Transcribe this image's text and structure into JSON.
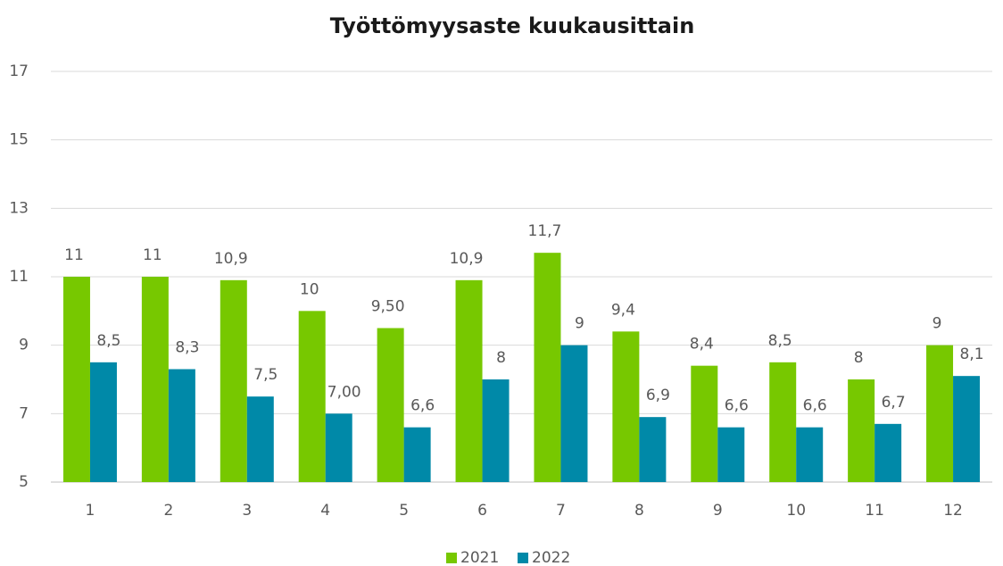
{
  "chart_data": {
    "type": "bar",
    "title": "Työttömyysaste kuukausittain",
    "categories": [
      "1",
      "2",
      "3",
      "4",
      "5",
      "6",
      "7",
      "8",
      "9",
      "10",
      "11",
      "12"
    ],
    "series": [
      {
        "name": "2021",
        "color": "#77c800",
        "values": [
          11,
          11,
          10.9,
          10,
          9.5,
          10.9,
          11.7,
          9.4,
          8.4,
          8.5,
          8,
          9
        ],
        "value_labels": [
          "11",
          "11",
          "10,9",
          "10",
          "9,50",
          "10,9",
          "11,7",
          "9,4",
          "8,4",
          "8,5",
          "8",
          "9"
        ]
      },
      {
        "name": "2022",
        "color": "#0089a8",
        "values": [
          8.5,
          8.3,
          7.5,
          7.0,
          6.6,
          8,
          9,
          6.9,
          6.6,
          6.6,
          6.7,
          8.1
        ],
        "value_labels": [
          "8,5",
          "8,3",
          "7,5",
          "7,00",
          "6,6",
          "8",
          "9",
          "6,9",
          "6,6",
          "6,6",
          "6,7",
          "8,1"
        ]
      }
    ],
    "ylim": [
      5,
      17
    ],
    "yticks": [
      5,
      7,
      9,
      11,
      13,
      15,
      17
    ],
    "grid": true,
    "legend": "bottom"
  }
}
